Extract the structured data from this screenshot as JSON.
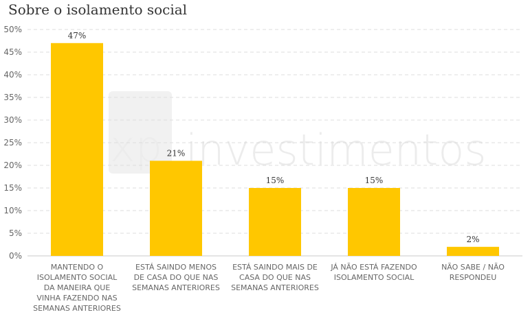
{
  "chart_data": {
    "type": "bar",
    "title": "Sobre o isolamento social",
    "xlabel": "",
    "ylabel": "",
    "ylim": [
      0,
      50
    ],
    "y_ticks": [
      "0%",
      "5%",
      "10%",
      "15%",
      "20%",
      "25%",
      "30%",
      "35%",
      "40%",
      "45%",
      "50%"
    ],
    "grid": true,
    "bar_color": "#ffc700",
    "categories": [
      [
        "MANTENDO O",
        "ISOLAMENTO SOCIAL",
        "DA MANEIRA QUE",
        "VINHA FAZENDO NAS",
        "SEMANAS ANTERIORES"
      ],
      [
        "ESTÁ SAINDO MENOS",
        "DE CASA DO QUE NAS",
        "SEMANAS ANTERIORES"
      ],
      [
        "ESTÁ SAINDO MAIS DE",
        "CASA DO QUE NAS",
        "SEMANAS ANTERIORES"
      ],
      [
        "JÁ NÃO ESTÁ FAZENDO",
        "ISOLAMENTO SOCIAL"
      ],
      [
        "NÃO SABE / NÃO",
        "RESPONDEU"
      ]
    ],
    "values": [
      47,
      21,
      15,
      15,
      2
    ],
    "data_labels": [
      "47%",
      "21%",
      "15%",
      "15%",
      "2%"
    ],
    "watermark": "xp investimentos"
  }
}
